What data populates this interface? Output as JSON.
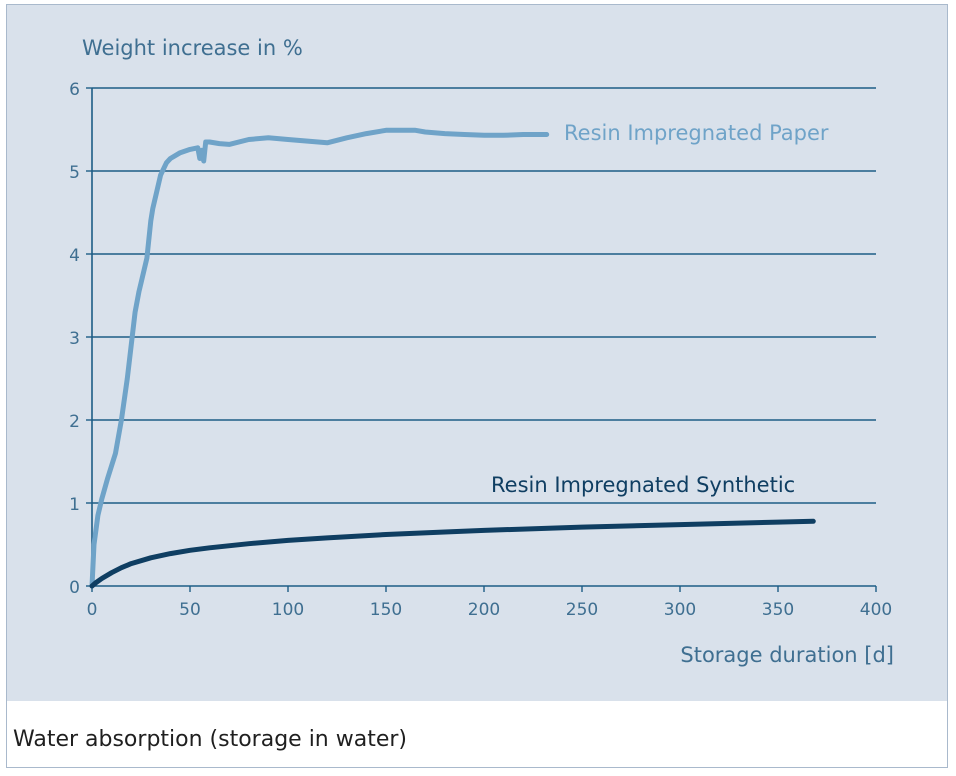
{
  "caption": "Water absorption (storage in water)",
  "colors": {
    "panel_bg": "#d9e1eb",
    "gridline": "#1d5d86",
    "axis_text": "#3f6f91",
    "paper_series": "#6fa3c8",
    "synthetic_series": "#0f3e62"
  },
  "chart_data": {
    "type": "line",
    "title": "",
    "ylabel": "Weight increase in %",
    "xlabel": "Storage duration [d]",
    "xlim": [
      0,
      400
    ],
    "ylim": [
      0,
      6
    ],
    "x_ticks": [
      0,
      50,
      100,
      150,
      200,
      250,
      300,
      350,
      400
    ],
    "y_ticks": [
      0,
      1,
      2,
      3,
      4,
      5,
      6
    ],
    "grid": "horizontal",
    "series": [
      {
        "name": "Resin Impregnated Paper",
        "color": "#6fa3c8",
        "x": [
          0,
          1,
          3,
          5,
          8,
          12,
          15,
          18,
          20,
          22,
          24,
          25,
          28,
          30,
          31,
          33,
          35,
          38,
          40,
          45,
          50,
          54,
          55,
          56,
          57,
          58,
          60,
          65,
          70,
          80,
          90,
          100,
          110,
          120,
          130,
          140,
          150,
          160,
          165,
          170,
          180,
          190,
          200,
          210,
          220,
          232
        ],
        "y": [
          0,
          0.5,
          0.85,
          1.05,
          1.3,
          1.6,
          2.0,
          2.5,
          2.9,
          3.3,
          3.55,
          3.65,
          3.95,
          4.4,
          4.55,
          4.75,
          4.95,
          5.1,
          5.15,
          5.22,
          5.26,
          5.28,
          5.15,
          5.25,
          5.12,
          5.35,
          5.35,
          5.33,
          5.32,
          5.38,
          5.4,
          5.38,
          5.36,
          5.34,
          5.4,
          5.45,
          5.49,
          5.49,
          5.49,
          5.47,
          5.45,
          5.44,
          5.43,
          5.43,
          5.44,
          5.44
        ]
      },
      {
        "name": "Resin Impregnated Synthetic",
        "color": "#0f3e62",
        "x": [
          0,
          2,
          5,
          10,
          15,
          20,
          30,
          40,
          50,
          60,
          80,
          100,
          120,
          150,
          180,
          200,
          250,
          300,
          350,
          368
        ],
        "y": [
          0,
          0.04,
          0.09,
          0.16,
          0.22,
          0.27,
          0.34,
          0.39,
          0.43,
          0.46,
          0.51,
          0.55,
          0.58,
          0.62,
          0.65,
          0.67,
          0.71,
          0.74,
          0.77,
          0.78
        ]
      }
    ]
  }
}
